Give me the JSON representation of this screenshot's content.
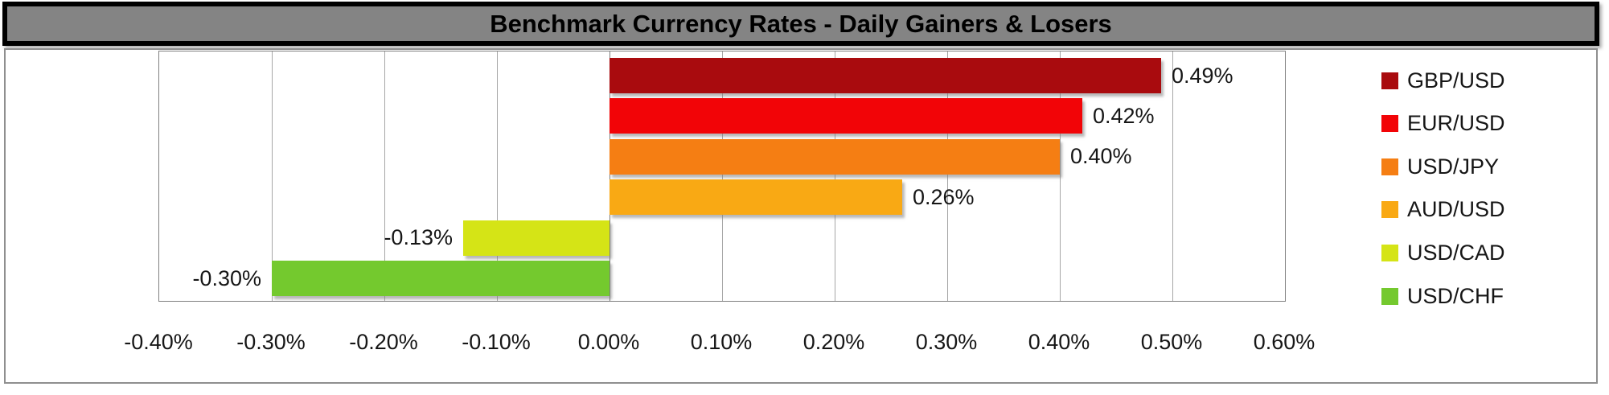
{
  "title": "Benchmark Currency Rates - Daily Gainers & Losers",
  "chart_data": {
    "type": "bar",
    "orientation": "horizontal",
    "title": "Benchmark Currency Rates - Daily Gainers & Losers",
    "categories": [
      "GBP/USD",
      "EUR/USD",
      "USD/JPY",
      "AUD/USD",
      "USD/CAD",
      "USD/CHF"
    ],
    "values": [
      0.49,
      0.42,
      0.4,
      0.26,
      -0.13,
      -0.3
    ],
    "value_labels": [
      "0.49%",
      "0.42%",
      "0.40%",
      "0.26%",
      "-0.13%",
      "-0.30%"
    ],
    "series_colors": [
      "#A90B0E",
      "#F20407",
      "#F57E13",
      "#F9A914",
      "#D5E416",
      "#74C92E"
    ],
    "x_axis": {
      "min": -0.4,
      "max": 0.6,
      "tick_interval": 0.1,
      "tick_labels": [
        "-0.40%",
        "-0.30%",
        "-0.20%",
        "-0.10%",
        "0.00%",
        "0.10%",
        "0.20%",
        "0.30%",
        "0.40%",
        "0.50%",
        "0.60%"
      ]
    },
    "grid": true,
    "legend_position": "right",
    "ylabel": "",
    "xlabel": ""
  },
  "colors": {
    "title_background": "#848484",
    "title_border": "#000000",
    "title_text": "#000000",
    "chart_border": "#8F8F8F",
    "plot_border": "#808080",
    "gridline": "#A6A6A6",
    "label_text": "#161616",
    "background": "#FFFFFF"
  }
}
